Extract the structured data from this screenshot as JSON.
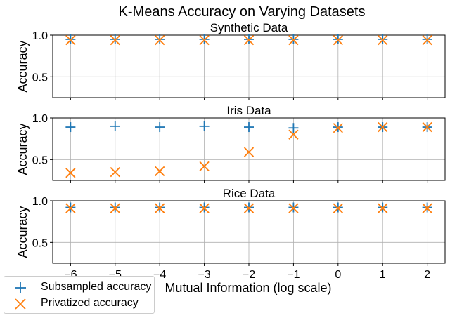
{
  "chart_data": {
    "type": "scatter",
    "title": "K-Means Accuracy on Varying Datasets",
    "xlabel": "Mutual Information (log scale)",
    "x": [
      -6,
      -5,
      -4,
      -3,
      -2,
      -1,
      0,
      1,
      2
    ],
    "xticks": [
      "−6",
      "−5",
      "−4",
      "−3",
      "−2",
      "−1",
      "0",
      "1",
      "2"
    ],
    "xlim": [
      -6.4,
      2.4
    ],
    "grid": true,
    "legend_position": "bottom-left",
    "colors": {
      "subsampled": "#1f77b4",
      "privatized": "#ff7f0e"
    },
    "panels": [
      {
        "title": "Synthetic Data",
        "ylabel": "Accuracy",
        "ylim": [
          0.25,
          1.0
        ],
        "yticks": [
          "0.5",
          "1.0"
        ],
        "ytick_values": [
          0.5,
          1.0
        ],
        "series": [
          {
            "name": "Subsampled accuracy",
            "marker": "plus",
            "values": [
              0.95,
              0.95,
              0.95,
              0.95,
              0.95,
              0.95,
              0.95,
              0.95,
              0.95
            ]
          },
          {
            "name": "Privatized accuracy",
            "marker": "x",
            "values": [
              0.94,
              0.94,
              0.94,
              0.94,
              0.94,
              0.94,
              0.94,
              0.94,
              0.94
            ]
          }
        ]
      },
      {
        "title": "Iris Data",
        "ylabel": "Accuracy",
        "ylim": [
          0.25,
          1.0
        ],
        "yticks": [
          "0.5",
          "1.0"
        ],
        "ytick_values": [
          0.5,
          1.0
        ],
        "series": [
          {
            "name": "Subsampled accuracy",
            "marker": "plus",
            "values": [
              0.89,
              0.9,
              0.89,
              0.9,
              0.89,
              0.88,
              0.89,
              0.89,
              0.89
            ]
          },
          {
            "name": "Privatized accuracy",
            "marker": "x",
            "values": [
              0.34,
              0.35,
              0.36,
              0.42,
              0.59,
              0.8,
              0.88,
              0.89,
              0.89
            ]
          }
        ]
      },
      {
        "title": "Rice Data",
        "ylabel": "Accuracy",
        "ylim": [
          0.25,
          1.0
        ],
        "yticks": [
          "0.5",
          "1.0"
        ],
        "ytick_values": [
          0.5,
          1.0
        ],
        "series": [
          {
            "name": "Subsampled accuracy",
            "marker": "plus",
            "values": [
              0.92,
              0.92,
              0.92,
              0.92,
              0.92,
              0.92,
              0.92,
              0.92,
              0.92
            ]
          },
          {
            "name": "Privatized accuracy",
            "marker": "x",
            "values": [
              0.91,
              0.91,
              0.91,
              0.91,
              0.91,
              0.91,
              0.91,
              0.91,
              0.91
            ]
          }
        ]
      }
    ],
    "legend": [
      "Subsampled accuracy",
      "Privatized accuracy"
    ]
  }
}
